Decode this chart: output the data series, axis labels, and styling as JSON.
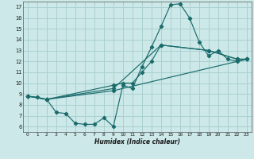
{
  "title": "",
  "xlabel": "Humidex (Indice chaleur)",
  "bg_color": "#cce8e8",
  "line_color": "#1a6b6b",
  "grid_color": "#aad0d0",
  "xlim": [
    -0.5,
    23.5
  ],
  "ylim": [
    5.5,
    17.5
  ],
  "xticks": [
    0,
    1,
    2,
    3,
    4,
    5,
    6,
    7,
    8,
    9,
    10,
    11,
    12,
    13,
    14,
    15,
    16,
    17,
    18,
    19,
    20,
    21,
    22,
    23
  ],
  "yticks": [
    6,
    7,
    8,
    9,
    10,
    11,
    12,
    13,
    14,
    15,
    16,
    17
  ],
  "line1_x": [
    0,
    1,
    2,
    3,
    4,
    5,
    6,
    7,
    8,
    9,
    10,
    11,
    12,
    13,
    14,
    15,
    16,
    17,
    18,
    19,
    20,
    21,
    22,
    23
  ],
  "line1_y": [
    8.8,
    8.7,
    8.5,
    7.3,
    7.2,
    6.3,
    6.2,
    6.2,
    6.8,
    6.0,
    9.8,
    9.5,
    11.5,
    13.3,
    15.2,
    17.2,
    17.3,
    16.0,
    13.8,
    12.5,
    13.0,
    12.2,
    12.0,
    12.2
  ],
  "line2_x": [
    0,
    2,
    9,
    10,
    11,
    12,
    13,
    14,
    19,
    22,
    23
  ],
  "line2_y": [
    8.8,
    8.5,
    9.8,
    10.0,
    10.0,
    11.0,
    12.0,
    13.5,
    13.0,
    12.2,
    12.2
  ],
  "line3_x": [
    0,
    2,
    9,
    14,
    19,
    22,
    23
  ],
  "line3_y": [
    8.8,
    8.5,
    9.5,
    13.5,
    13.0,
    12.2,
    12.2
  ],
  "line4_x": [
    0,
    2,
    9,
    23
  ],
  "line4_y": [
    8.8,
    8.5,
    9.3,
    12.2
  ]
}
